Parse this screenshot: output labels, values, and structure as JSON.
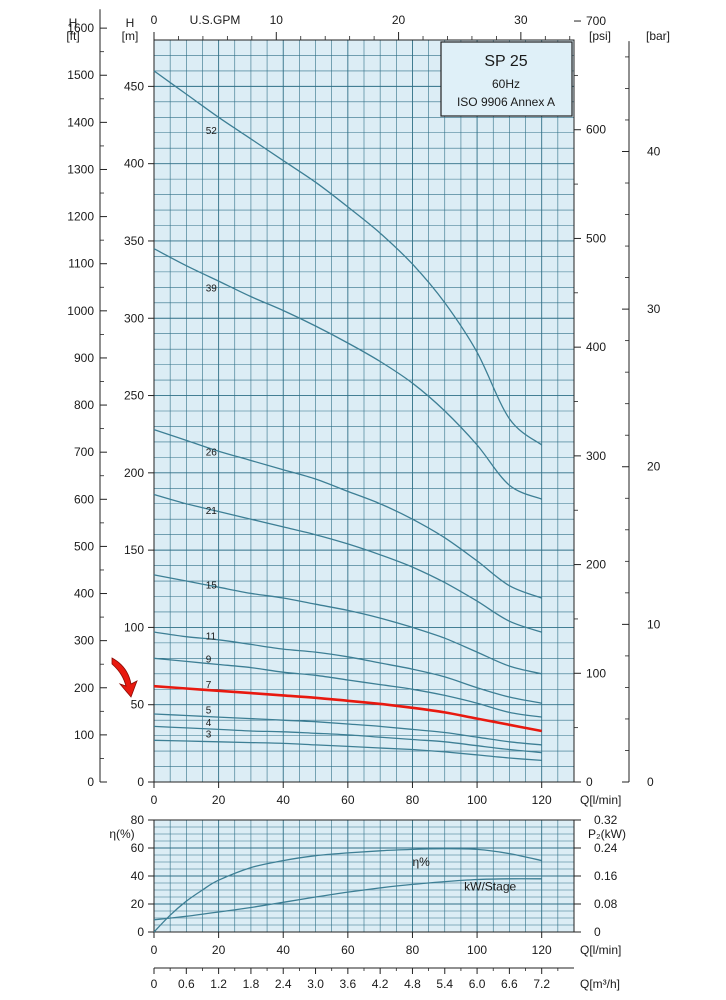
{
  "chart_data": [
    {
      "type": "line",
      "title_box": [
        "SP 25",
        "60Hz",
        "ISO 9906 Annex A"
      ],
      "xlabel": "Q[l/min]",
      "x_ticks": [
        0,
        20,
        40,
        60,
        80,
        100,
        120
      ],
      "xlim": [
        0,
        130
      ],
      "ylabel": "H [m]",
      "ylim": [
        0,
        480
      ],
      "y_ticks": [
        0,
        50,
        100,
        150,
        200,
        250,
        300,
        350,
        400,
        450
      ],
      "secondary_axes": {
        "top_gpm": {
          "label": "U.S.GPM",
          "ticks": [
            0,
            10,
            20,
            30
          ]
        },
        "left_ft": {
          "label": "H [ft]",
          "ticks": [
            0,
            100,
            200,
            300,
            400,
            500,
            600,
            700,
            800,
            900,
            1000,
            1100,
            1200,
            1300,
            1400,
            1500,
            1600
          ]
        },
        "right_psi": {
          "label": "[psi]",
          "ticks": [
            0,
            100,
            200,
            300,
            400,
            500,
            600,
            700
          ]
        },
        "right_bar": {
          "label": "[bar]",
          "ticks": [
            0,
            10,
            20,
            30,
            40
          ]
        }
      },
      "highlight_color": "#e8190f",
      "curve_color": "#3d7f95",
      "series": [
        {
          "name": "52",
          "x": [
            0,
            10,
            20,
            30,
            40,
            50,
            60,
            70,
            80,
            90,
            100,
            110,
            120
          ],
          "y": [
            460,
            445,
            430,
            416,
            402,
            388,
            372,
            355,
            335,
            310,
            278,
            235,
            218
          ]
        },
        {
          "name": "39",
          "x": [
            0,
            10,
            20,
            30,
            40,
            50,
            60,
            70,
            80,
            90,
            100,
            110,
            120
          ],
          "y": [
            345,
            334,
            324,
            314,
            305,
            295,
            284,
            272,
            258,
            240,
            218,
            192,
            183
          ]
        },
        {
          "name": "26",
          "x": [
            0,
            10,
            20,
            30,
            40,
            50,
            60,
            70,
            80,
            90,
            100,
            110,
            120
          ],
          "y": [
            228,
            221,
            214,
            208,
            202,
            196,
            188,
            180,
            170,
            158,
            143,
            127,
            119
          ]
        },
        {
          "name": "21",
          "x": [
            0,
            10,
            20,
            30,
            40,
            50,
            60,
            70,
            80,
            90,
            100,
            110,
            120
          ],
          "y": [
            186,
            180,
            175,
            170,
            165,
            160,
            154,
            147,
            139,
            129,
            117,
            104,
            97
          ]
        },
        {
          "name": "15",
          "x": [
            0,
            10,
            20,
            30,
            40,
            50,
            60,
            70,
            80,
            90,
            100,
            110,
            120
          ],
          "y": [
            134,
            130,
            126,
            122,
            119,
            115,
            111,
            106,
            100,
            93,
            84,
            75,
            70
          ]
        },
        {
          "name": "11",
          "x": [
            0,
            10,
            20,
            30,
            40,
            50,
            60,
            70,
            80,
            90,
            100,
            110,
            120
          ],
          "y": [
            97,
            94,
            92,
            89,
            86,
            84,
            81,
            77,
            73,
            68,
            61,
            55,
            51
          ]
        },
        {
          "name": "9",
          "x": [
            0,
            10,
            20,
            30,
            40,
            50,
            60,
            70,
            80,
            90,
            100,
            110,
            120
          ],
          "y": [
            80,
            78,
            76,
            74,
            71,
            69,
            66,
            63,
            60,
            56,
            51,
            45,
            42
          ]
        },
        {
          "name": "7",
          "highlight": true,
          "x": [
            0,
            10,
            20,
            30,
            40,
            50,
            60,
            70,
            80,
            90,
            100,
            110,
            120
          ],
          "y": [
            62,
            60.5,
            59,
            57.5,
            56,
            54.5,
            52.5,
            50.5,
            48,
            45,
            41,
            37,
            33
          ]
        },
        {
          "name": "5",
          "x": [
            0,
            10,
            20,
            30,
            40,
            50,
            60,
            70,
            80,
            90,
            100,
            110,
            120
          ],
          "y": [
            44,
            43,
            42,
            41,
            40,
            39,
            37.5,
            36,
            34,
            32,
            29,
            26,
            24
          ]
        },
        {
          "name": "4",
          "x": [
            0,
            10,
            20,
            30,
            40,
            50,
            60,
            70,
            80,
            90,
            100,
            110,
            120
          ],
          "y": [
            36,
            35,
            34,
            33,
            32.5,
            31.5,
            30.5,
            29,
            27.5,
            26,
            23.5,
            21,
            19
          ]
        },
        {
          "name": "3",
          "x": [
            0,
            10,
            20,
            30,
            40,
            50,
            60,
            70,
            80,
            90,
            100,
            110,
            120
          ],
          "y": [
            27,
            26.5,
            26,
            25.5,
            25,
            24,
            23,
            22,
            21,
            19.5,
            17.5,
            15.5,
            14
          ]
        }
      ]
    },
    {
      "type": "line",
      "xlabel": "Q[l/min]",
      "x_ticks": [
        0,
        20,
        40,
        60,
        80,
        100,
        120
      ],
      "xlim": [
        0,
        130
      ],
      "ylabel": "η(%)",
      "ylim": [
        0,
        80
      ],
      "y_ticks": [
        0,
        20,
        40,
        60,
        80
      ],
      "secondary_axes": {
        "right_p2": {
          "label": "P₂(kW)",
          "ticks": [
            "0",
            "0.08",
            "0.16",
            "0.24",
            "0.32"
          ]
        },
        "bottom_m3h": {
          "label": "Q[m³/h]",
          "ticks": [
            "0",
            "0.6",
            "1.2",
            "1.8",
            "2.4",
            "3.0",
            "3.6",
            "4.2",
            "4.8",
            "5.4",
            "6.0",
            "6.6",
            "7.2"
          ]
        }
      },
      "series": [
        {
          "name": "η%",
          "x": [
            0,
            5,
            10,
            15,
            20,
            30,
            40,
            50,
            60,
            70,
            80,
            90,
            100,
            110,
            120
          ],
          "y": [
            0,
            12,
            22,
            30,
            37,
            46,
            51,
            54.5,
            56.5,
            58,
            59,
            59.5,
            59,
            56,
            51
          ]
        },
        {
          "name": "kW/Stage",
          "x": [
            0,
            10,
            20,
            30,
            40,
            50,
            60,
            70,
            80,
            90,
            100,
            110,
            120
          ],
          "y": [
            0.035,
            0.045,
            0.057,
            0.07,
            0.085,
            0.1,
            0.114,
            0.126,
            0.136,
            0.144,
            0.15,
            0.152,
            0.152
          ]
        }
      ]
    }
  ]
}
